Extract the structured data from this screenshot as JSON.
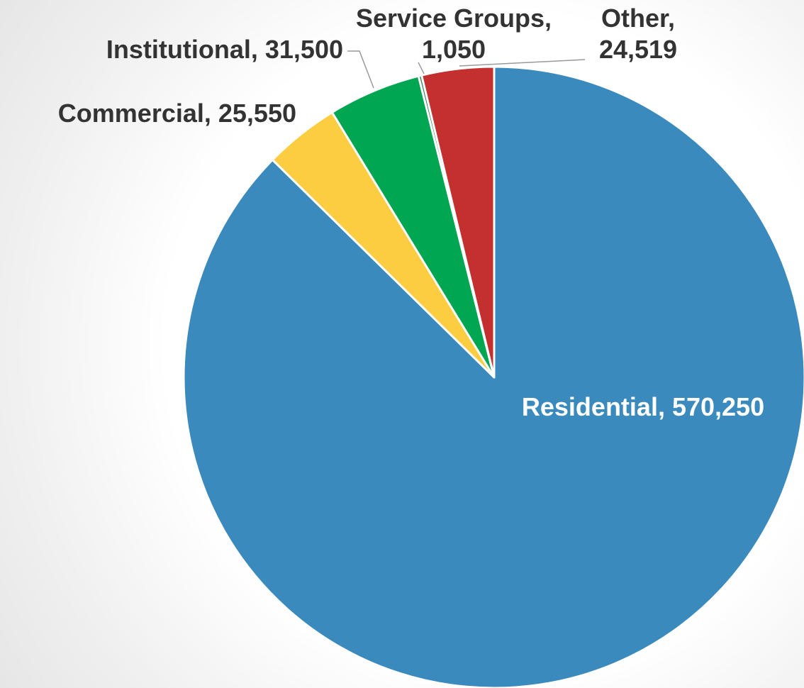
{
  "chart_data": {
    "type": "pie",
    "title": "",
    "start_angle_deg": 0,
    "direction": "clockwise",
    "slices": [
      {
        "name": "Residential",
        "label_name": "Residential,",
        "label_value": "570,250",
        "value": 570250,
        "color": "#3a8abd",
        "label_inside": true
      },
      {
        "name": "Commercial",
        "label_name": "Commercial,",
        "label_value": "25,550",
        "value": 25550,
        "color": "#fccd40",
        "label_inside": false
      },
      {
        "name": "Institutional",
        "label_name": "Institutional,",
        "label_value": "31,500",
        "value": 31500,
        "color": "#00a651",
        "label_inside": false
      },
      {
        "name": "Service Groups",
        "label_name": "Service Groups,",
        "label_value": "1,050",
        "value": 1050,
        "color": "#2f7f4f",
        "label_inside": false
      },
      {
        "name": "Other",
        "label_name": "Other,",
        "label_value": "24,519",
        "value": 24519,
        "color": "#c4302f",
        "label_inside": false
      }
    ]
  }
}
